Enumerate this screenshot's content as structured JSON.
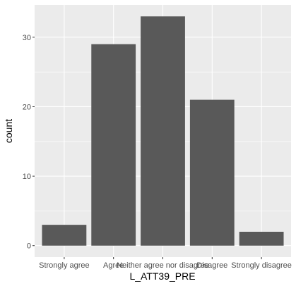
{
  "chart_data": {
    "type": "bar",
    "categories": [
      "Strongly agree",
      "Agree",
      "Neither agree nor disagree",
      "Disagree",
      "Strongly disagree"
    ],
    "values": [
      3,
      29,
      33,
      21,
      2
    ],
    "xlabel": "L_ATT39_PRE",
    "ylabel": "count",
    "ylim": [
      -1.65,
      34.65
    ],
    "yticks": [
      0,
      10,
      20,
      30
    ],
    "grid": true,
    "colors": {
      "panel": "#ebebeb",
      "grid_major": "#ffffff",
      "bar": "#595959",
      "text": "#4d4d4d"
    }
  }
}
